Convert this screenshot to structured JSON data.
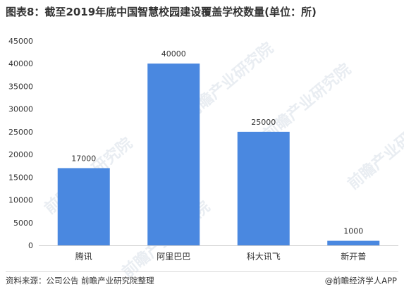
{
  "title": "图表8：截至2019年底中国智慧校园建设覆盖学校数量(单位：所)",
  "source": "资料来源：公司公告 前瞻产业研究院整理",
  "credit": "@前瞻经济学人APP",
  "watermark": "前瞻产业研究院",
  "colors": {
    "bar": "#4a88e0",
    "axis": "#d0d0d0",
    "text": "#333333"
  },
  "chart_data": {
    "type": "bar",
    "categories": [
      "腾讯",
      "阿里巴巴",
      "科大讯飞",
      "新开普"
    ],
    "values": [
      17000,
      40000,
      25000,
      1000
    ],
    "data_labels": [
      "17000",
      "40000",
      "25000",
      "1000"
    ],
    "yticks": [
      "0",
      "5000",
      "10000",
      "15000",
      "20000",
      "25000",
      "30000",
      "35000",
      "40000",
      "45000"
    ],
    "ylim": [
      0,
      45000
    ],
    "grid": false,
    "legend": "none"
  }
}
